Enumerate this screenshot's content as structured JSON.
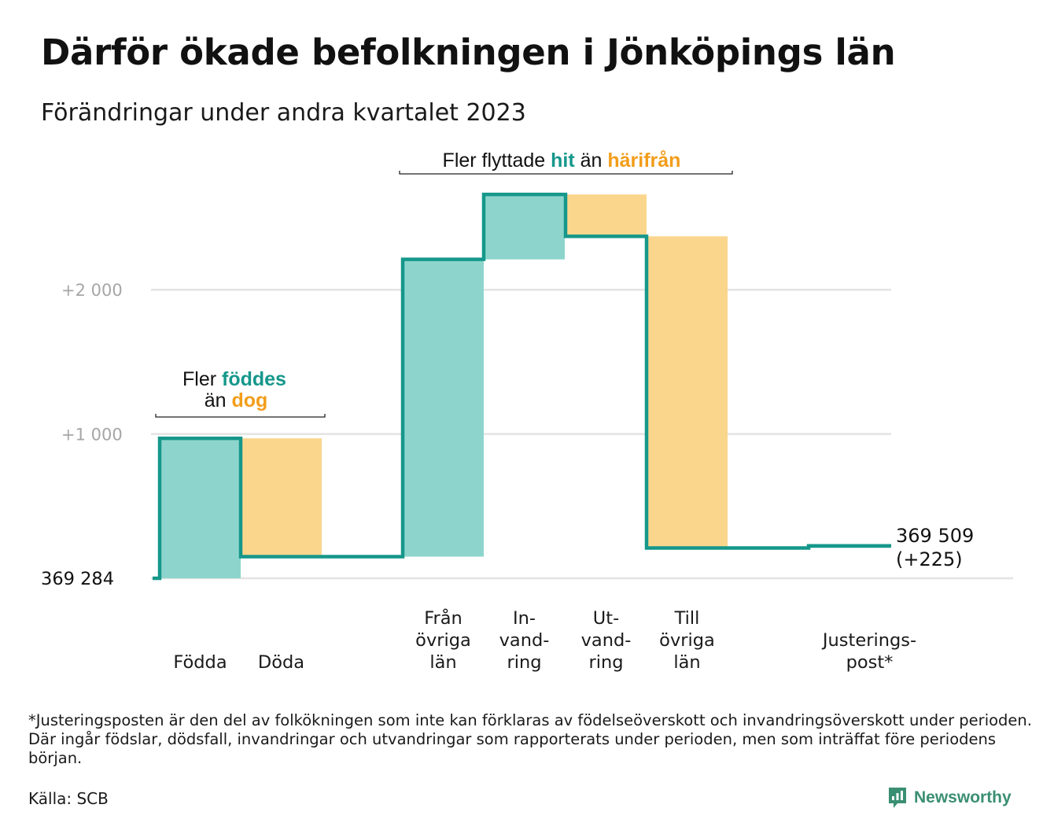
{
  "title": "Därför ökade befolkningen i Jönköpings län",
  "subtitle": "Förändringar under andra kvartalet 2023",
  "chart_data": {
    "type": "waterfall",
    "start_value": 369284,
    "start_label": "369  284",
    "end_label_value": "369 509",
    "end_label_change": "(+225)",
    "y_axis": {
      "range_change": [
        0,
        2700
      ],
      "ticks": [
        {
          "value": 1000,
          "label": "+1  000"
        },
        {
          "value": 2000,
          "label": "+2  000"
        }
      ],
      "grid": true
    },
    "steps": [
      {
        "label_lines": [
          "Födda"
        ],
        "change": 970,
        "type": "increase"
      },
      {
        "label_lines": [
          "Döda"
        ],
        "change": -820,
        "type": "decrease"
      },
      {
        "label_lines": [
          "Från",
          "övriga",
          "län"
        ],
        "change": 2060,
        "type": "increase"
      },
      {
        "label_lines": [
          "In-",
          "vand-",
          "ring"
        ],
        "change": 450,
        "type": "increase"
      },
      {
        "label_lines": [
          "Ut-",
          "vand-",
          "ring"
        ],
        "change": -290,
        "type": "decrease"
      },
      {
        "label_lines": [
          "Till",
          "övriga",
          "län"
        ],
        "change": -2160,
        "type": "decrease"
      },
      {
        "label_lines": [
          "Justerings-",
          "post*"
        ],
        "change": 15,
        "type": "increase"
      }
    ],
    "annotations": [
      {
        "prefix": "Fler ",
        "highlight1": "föddes",
        "line2_prefix": "än ",
        "highlight2": "dog"
      },
      {
        "prefix": "Fler flyttade ",
        "highlight1": "hit",
        "middle": " än ",
        "highlight2": "härifrån"
      }
    ],
    "colors": {
      "increase_fill": "#8dd5cc",
      "decrease_fill": "#fad68d",
      "step_line": "#16978b",
      "increase_text": "#16978b",
      "decrease_text": "#f29d1b",
      "grid": "#e3e3e3",
      "tick_text": "#a6a6a6"
    }
  },
  "footnote": "*Justeringsposten är den del av folkökningen som inte kan förklaras av födelseöverskott och invandringsöverskott under perioden. Där ingår födslar, dödsfall, invandringar och utvandringar som rapporterats under perioden, men som inträffat före periodens början.",
  "source": "Källa: SCB",
  "brand": {
    "name": "Newsworthy",
    "icon": "newsworthy-logo-icon",
    "color": "#3a8f72"
  }
}
